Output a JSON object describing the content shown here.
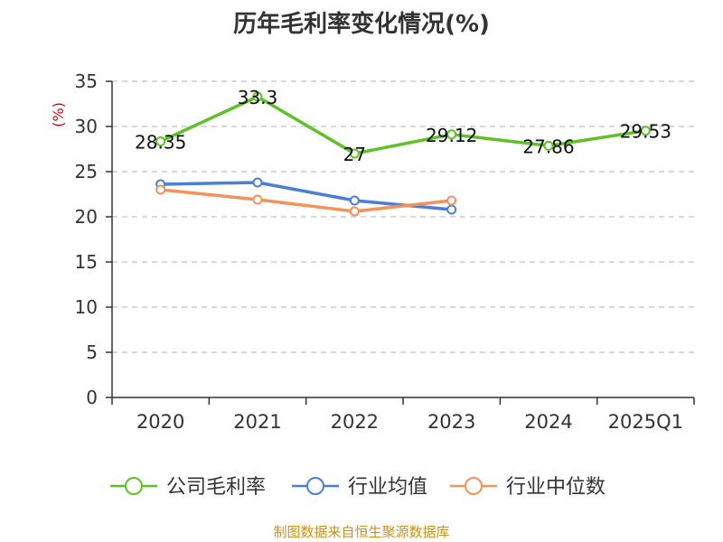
{
  "title": "历年毛利率变化情况(%)",
  "source": "制图数据来自恒生聚源数据库",
  "colors": {
    "axis": "#333333",
    "grid": "#cccccc",
    "ylabel": "#d0021b"
  },
  "chart_data": {
    "type": "line",
    "title": "历年毛利率变化情况(%)",
    "ylabel": "(%)",
    "xlabel": "",
    "categories": [
      "2020",
      "2021",
      "2022",
      "2023",
      "2024",
      "2025Q1"
    ],
    "ylim": [
      0,
      35
    ],
    "yticks": [
      0,
      5,
      10,
      15,
      20,
      25,
      30,
      35
    ],
    "grid": true,
    "legend_position": "bottom",
    "series": [
      {
        "name": "公司毛利率",
        "color": "#5ec226",
        "values": [
          28.35,
          33.3,
          27,
          29.12,
          27.86,
          29.53
        ],
        "show_labels": true,
        "labels": [
          "28.35",
          "33.3",
          "27",
          "29.12",
          "27.86",
          "29.53"
        ]
      },
      {
        "name": "行业均值",
        "color": "#4a7fd9",
        "values": [
          23.6,
          23.8,
          21.8,
          20.8,
          null,
          null
        ],
        "show_labels": false
      },
      {
        "name": "行业中位数",
        "color": "#f5915a",
        "values": [
          23.0,
          21.9,
          20.6,
          21.8,
          null,
          null
        ],
        "show_labels": false
      }
    ]
  }
}
